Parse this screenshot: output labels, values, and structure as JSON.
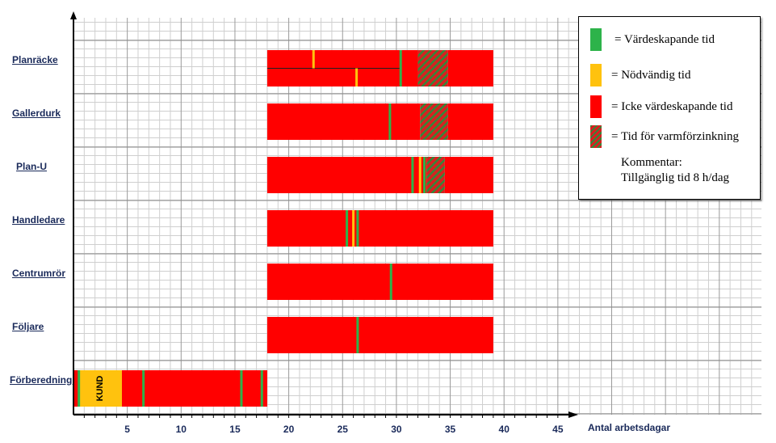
{
  "chart_data": {
    "type": "bar",
    "orientation": "horizontal",
    "xlabel": "Antal arbetsdagar",
    "xlim": [
      0,
      45
    ],
    "xticks": [
      5,
      10,
      15,
      20,
      25,
      30,
      35,
      40,
      45
    ],
    "grid": true,
    "legend_position": "top-right",
    "colors": {
      "value_adding": "#2db34a",
      "necessary": "#ffc20e",
      "non_value_adding": "#ff0000",
      "galvanizing": "hatched-green-red"
    },
    "legend": [
      {
        "key": "value_adding",
        "label": "= Värdeskapande tid"
      },
      {
        "key": "necessary",
        "label": "= Nödvändig tid"
      },
      {
        "key": "non_value_adding",
        "label": "= Icke värdeskapande tid"
      },
      {
        "key": "galvanizing",
        "label": "= Tid för varmförzinkning"
      }
    ],
    "comment_title": "Kommentar:",
    "comment_text": "Tillgänglig tid 8 h/dag",
    "rows": [
      {
        "label": "Planräcke",
        "segments": [
          {
            "start": 18,
            "end": 32,
            "type": "non_value_adding"
          },
          {
            "start": 32,
            "end": 34.8,
            "type": "galvanizing"
          },
          {
            "start": 34.8,
            "end": 39,
            "type": "non_value_adding"
          }
        ],
        "markers": [
          {
            "x": 22.3,
            "type": "necessary",
            "sub": 0
          },
          {
            "x": 30.4,
            "type": "value_adding",
            "sub": 0
          },
          {
            "x": 26.3,
            "type": "necessary",
            "sub": 1
          },
          {
            "x": 30.4,
            "type": "value_adding",
            "sub": 1
          }
        ],
        "sub_rows": 2
      },
      {
        "label": "Gallerdurk",
        "segments": [
          {
            "start": 18,
            "end": 32.2,
            "type": "non_value_adding"
          },
          {
            "start": 32.2,
            "end": 34.8,
            "type": "galvanizing"
          },
          {
            "start": 34.8,
            "end": 39,
            "type": "non_value_adding"
          }
        ],
        "markers": [
          {
            "x": 29.4,
            "type": "value_adding"
          }
        ]
      },
      {
        "label": "Plan-U",
        "segments": [
          {
            "start": 18,
            "end": 32.8,
            "type": "non_value_adding"
          },
          {
            "start": 32.8,
            "end": 34.5,
            "type": "galvanizing"
          },
          {
            "start": 34.5,
            "end": 39,
            "type": "non_value_adding"
          }
        ],
        "markers": [
          {
            "x": 31.5,
            "type": "value_adding"
          },
          {
            "x": 32.2,
            "type": "necessary"
          },
          {
            "x": 32.6,
            "type": "value_adding"
          }
        ]
      },
      {
        "label": "Handledare",
        "segments": [
          {
            "start": 18,
            "end": 39,
            "type": "non_value_adding"
          }
        ],
        "markers": [
          {
            "x": 25.4,
            "type": "value_adding"
          },
          {
            "x": 26.0,
            "type": "necessary"
          },
          {
            "x": 26.4,
            "type": "value_adding"
          }
        ]
      },
      {
        "label": "Centrumrör",
        "segments": [
          {
            "start": 18,
            "end": 39,
            "type": "non_value_adding"
          }
        ],
        "markers": [
          {
            "x": 29.5,
            "type": "value_adding"
          }
        ]
      },
      {
        "label": "Följare",
        "segments": [
          {
            "start": 18,
            "end": 39,
            "type": "non_value_adding"
          }
        ],
        "markers": [
          {
            "x": 26.4,
            "type": "value_adding"
          }
        ]
      },
      {
        "label": "Förberedning",
        "segments": [
          {
            "start": 0,
            "end": 0.5,
            "type": "non_value_adding"
          },
          {
            "start": 0.5,
            "end": 4.5,
            "type": "necessary",
            "text": "KUND"
          },
          {
            "start": 4.5,
            "end": 18,
            "type": "non_value_adding"
          }
        ],
        "markers": [
          {
            "x": 0.5,
            "type": "value_adding"
          },
          {
            "x": 6.5,
            "type": "value_adding"
          },
          {
            "x": 15.6,
            "type": "value_adding"
          },
          {
            "x": 17.5,
            "type": "value_adding"
          }
        ]
      }
    ]
  }
}
